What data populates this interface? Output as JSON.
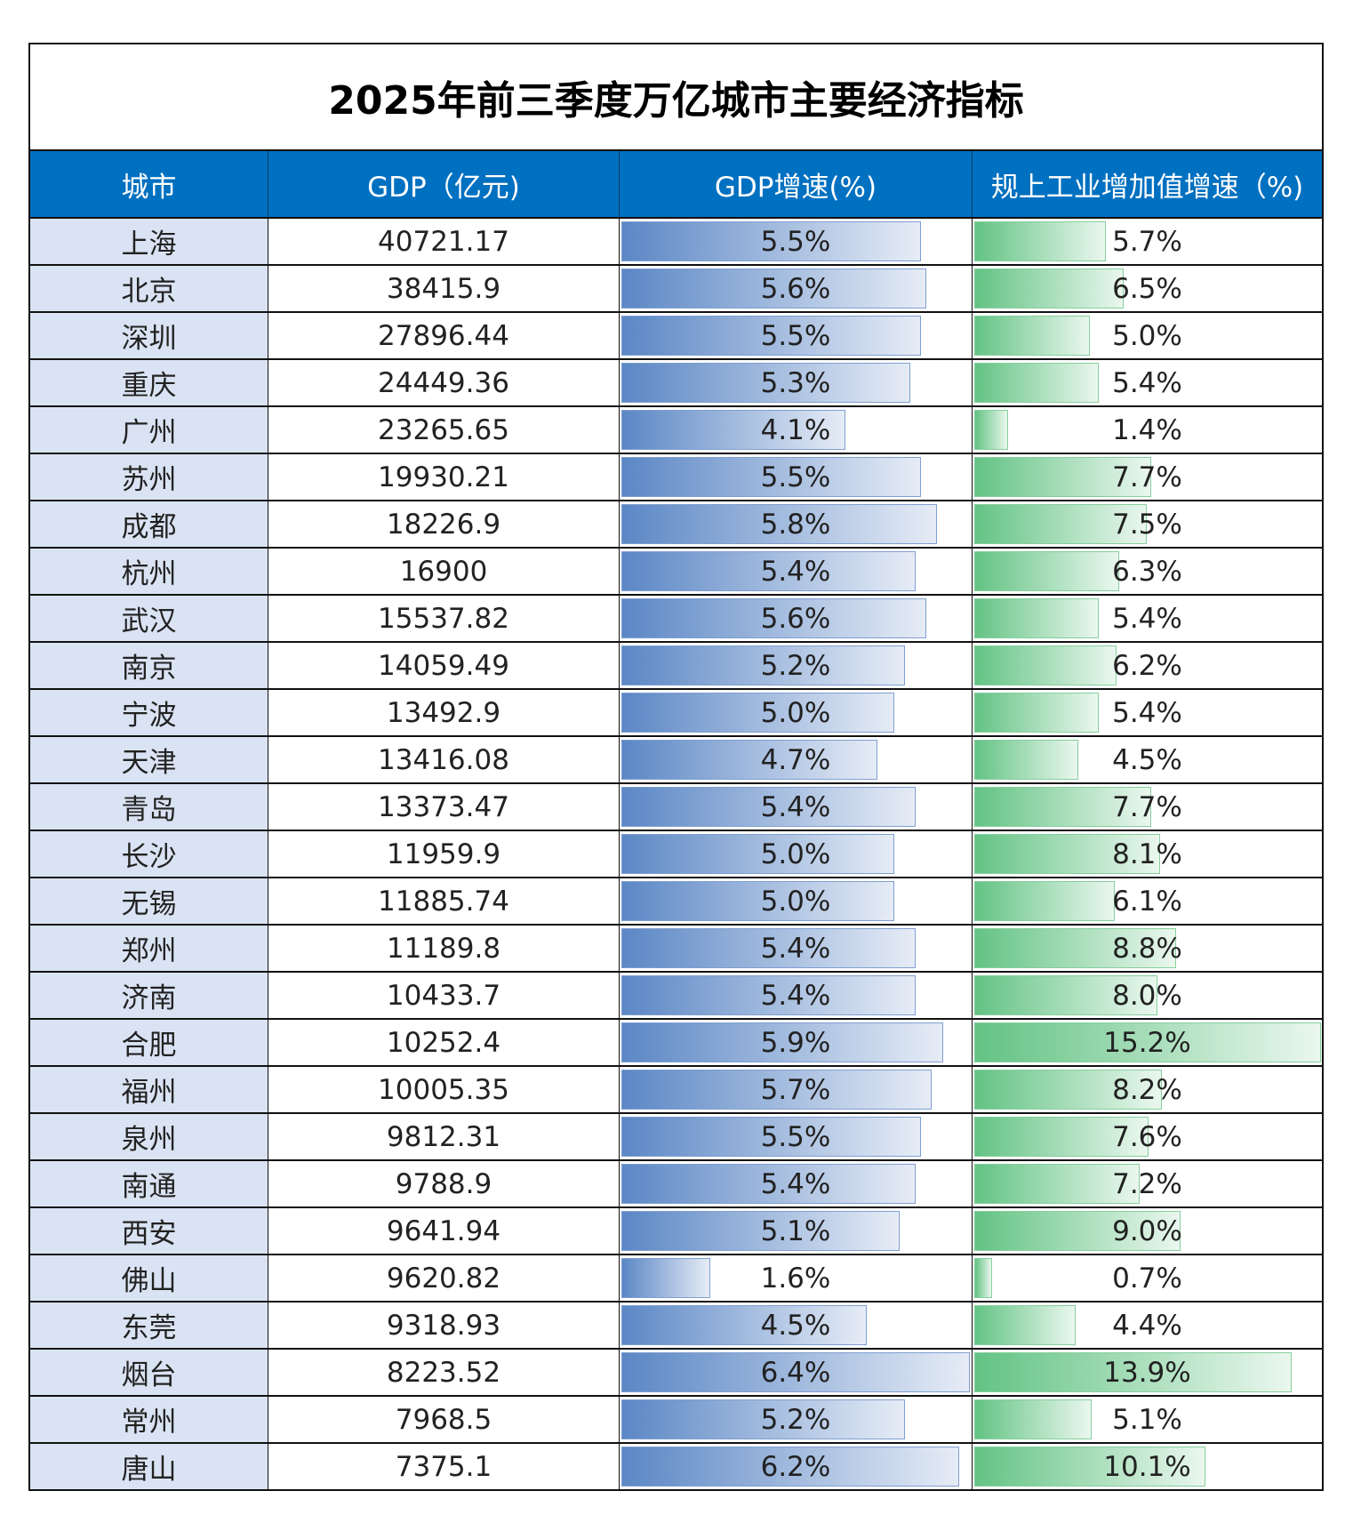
{
  "title": "2025年前三季度万亿城市主要经济指标",
  "headers": [
    "城市",
    "GDP（亿元)",
    "GDP增速(%)",
    "规上工业增加值增速（%)"
  ],
  "colors": {
    "header_bg": "#0070c0",
    "city_bg": "#dae3f3",
    "gdp_growth_bar": "#5b87c5",
    "industry_growth_bar": "#63c384"
  },
  "rows": [
    {
      "city": "上海",
      "gdp": "40721.17",
      "gdp_growth": "5.5%",
      "industry_growth": "5.7%"
    },
    {
      "city": "北京",
      "gdp": "38415.9",
      "gdp_growth": "5.6%",
      "industry_growth": "6.5%"
    },
    {
      "city": "深圳",
      "gdp": "27896.44",
      "gdp_growth": "5.5%",
      "industry_growth": "5.0%"
    },
    {
      "city": "重庆",
      "gdp": "24449.36",
      "gdp_growth": "5.3%",
      "industry_growth": "5.4%"
    },
    {
      "city": "广州",
      "gdp": "23265.65",
      "gdp_growth": "4.1%",
      "industry_growth": "1.4%"
    },
    {
      "city": "苏州",
      "gdp": "19930.21",
      "gdp_growth": "5.5%",
      "industry_growth": "7.7%"
    },
    {
      "city": "成都",
      "gdp": "18226.9",
      "gdp_growth": "5.8%",
      "industry_growth": "7.5%"
    },
    {
      "city": "杭州",
      "gdp": "16900",
      "gdp_growth": "5.4%",
      "industry_growth": "6.3%"
    },
    {
      "city": "武汉",
      "gdp": "15537.82",
      "gdp_growth": "5.6%",
      "industry_growth": "5.4%"
    },
    {
      "city": "南京",
      "gdp": "14059.49",
      "gdp_growth": "5.2%",
      "industry_growth": "6.2%"
    },
    {
      "city": "宁波",
      "gdp": "13492.9",
      "gdp_growth": "5.0%",
      "industry_growth": "5.4%"
    },
    {
      "city": "天津",
      "gdp": "13416.08",
      "gdp_growth": "4.7%",
      "industry_growth": "4.5%"
    },
    {
      "city": "青岛",
      "gdp": "13373.47",
      "gdp_growth": "5.4%",
      "industry_growth": "7.7%"
    },
    {
      "city": "长沙",
      "gdp": "11959.9",
      "gdp_growth": "5.0%",
      "industry_growth": "8.1%"
    },
    {
      "city": "无锡",
      "gdp": "11885.74",
      "gdp_growth": "5.0%",
      "industry_growth": "6.1%"
    },
    {
      "city": "郑州",
      "gdp": "11189.8",
      "gdp_growth": "5.4%",
      "industry_growth": "8.8%"
    },
    {
      "city": "济南",
      "gdp": "10433.7",
      "gdp_growth": "5.4%",
      "industry_growth": "8.0%"
    },
    {
      "city": "合肥",
      "gdp": "10252.4",
      "gdp_growth": "5.9%",
      "industry_growth": "15.2%"
    },
    {
      "city": "福州",
      "gdp": "10005.35",
      "gdp_growth": "5.7%",
      "industry_growth": "8.2%"
    },
    {
      "city": "泉州",
      "gdp": "9812.31",
      "gdp_growth": "5.5%",
      "industry_growth": "7.6%"
    },
    {
      "city": "南通",
      "gdp": "9788.9",
      "gdp_growth": "5.4%",
      "industry_growth": "7.2%"
    },
    {
      "city": "西安",
      "gdp": "9641.94",
      "gdp_growth": "5.1%",
      "industry_growth": "9.0%"
    },
    {
      "city": "佛山",
      "gdp": "9620.82",
      "gdp_growth": "1.6%",
      "industry_growth": "0.7%"
    },
    {
      "city": "东莞",
      "gdp": "9318.93",
      "gdp_growth": "4.5%",
      "industry_growth": "4.4%"
    },
    {
      "city": "烟台",
      "gdp": "8223.52",
      "gdp_growth": "6.4%",
      "industry_growth": "13.9%"
    },
    {
      "city": "常州",
      "gdp": "7968.5",
      "gdp_growth": "5.2%",
      "industry_growth": "5.1%"
    },
    {
      "city": "唐山",
      "gdp": "7375.1",
      "gdp_growth": "6.2%",
      "industry_growth": "10.1%"
    }
  ]
}
